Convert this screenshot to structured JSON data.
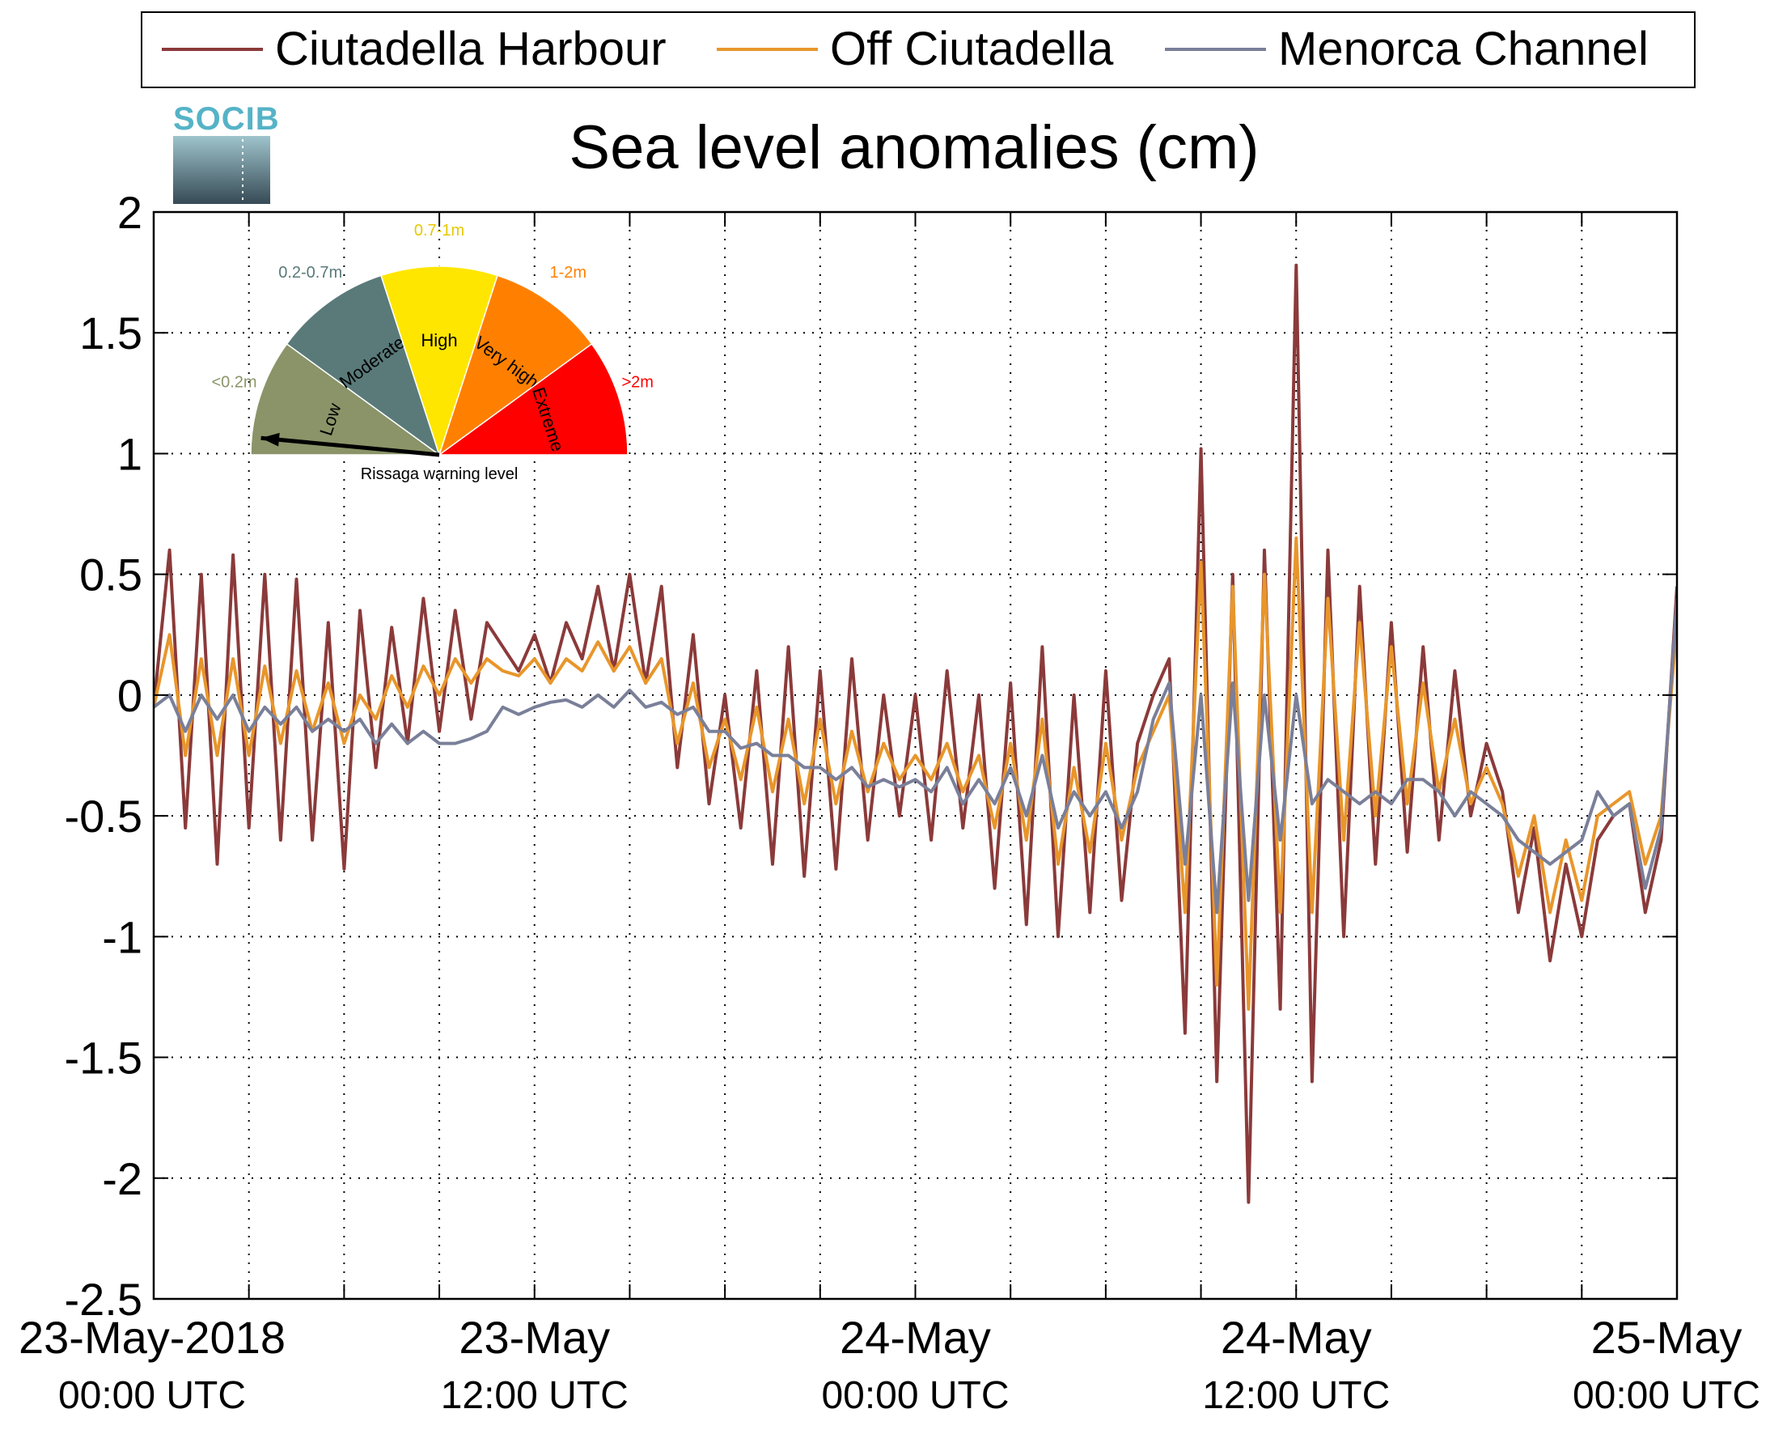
{
  "chart_data": {
    "type": "line",
    "title": "Sea level anomalies (cm)",
    "logo_text": "SOCIB",
    "xlabel": "",
    "ylabel": "",
    "ylim": [
      -2.5,
      2
    ],
    "xlim_hours": [
      0,
      48
    ],
    "grid": true,
    "legend_position": "top",
    "yticks": [
      {
        "value": 2,
        "label": "2"
      },
      {
        "value": 1.5,
        "label": "1.5"
      },
      {
        "value": 1,
        "label": "1"
      },
      {
        "value": 0.5,
        "label": "0.5"
      },
      {
        "value": 0,
        "label": "0"
      },
      {
        "value": -0.5,
        "label": "-0.5"
      },
      {
        "value": -1,
        "label": "-1"
      },
      {
        "value": -1.5,
        "label": "-1.5"
      },
      {
        "value": -2,
        "label": "-2"
      },
      {
        "value": -2.5,
        "label": "-2.5"
      }
    ],
    "xticks": [
      {
        "hour": 0,
        "date": "23-May-2018",
        "time": "00:00 UTC"
      },
      {
        "hour": 12,
        "date": "23-May",
        "time": "12:00 UTC"
      },
      {
        "hour": 24,
        "date": "24-May",
        "time": "00:00 UTC"
      },
      {
        "hour": 36,
        "date": "24-May",
        "time": "12:00 UTC"
      },
      {
        "hour": 48,
        "date": "25-May",
        "time": "00:00 UTC"
      }
    ],
    "x_minor_grid_hours": [
      3,
      6,
      9,
      12,
      15,
      18,
      21,
      24,
      27,
      30,
      33,
      36,
      39,
      42,
      45
    ],
    "series": [
      {
        "name": "Ciutadella Harbour",
        "color": "#8b3a3a",
        "x": [
          0,
          0.5,
          1,
          1.5,
          2,
          2.5,
          3,
          3.5,
          4,
          4.5,
          5,
          5.5,
          6,
          6.5,
          7,
          7.5,
          8,
          8.5,
          9,
          9.5,
          10,
          10.5,
          11,
          11.5,
          12,
          12.5,
          13,
          13.5,
          14,
          14.5,
          15,
          15.5,
          16,
          16.5,
          17,
          17.5,
          18,
          18.5,
          19,
          19.5,
          20,
          20.5,
          21,
          21.5,
          22,
          22.5,
          23,
          23.5,
          24,
          24.5,
          25,
          25.5,
          26,
          26.5,
          27,
          27.5,
          28,
          28.5,
          29,
          29.5,
          30,
          30.5,
          31,
          31.5,
          32,
          32.5,
          33,
          33.5,
          34,
          34.5,
          35,
          35.5,
          36,
          36.5,
          37,
          37.5,
          38,
          38.5,
          39,
          39.5,
          40,
          40.5,
          41,
          41.5,
          42,
          42.5,
          43,
          43.5,
          44,
          44.5,
          45,
          45.5,
          46,
          46.5,
          47,
          47.5,
          48
        ],
        "y": [
          -0.05,
          0.6,
          -0.55,
          0.5,
          -0.7,
          0.58,
          -0.55,
          0.5,
          -0.6,
          0.48,
          -0.6,
          0.3,
          -0.72,
          0.35,
          -0.3,
          0.28,
          -0.2,
          0.4,
          -0.15,
          0.35,
          -0.1,
          0.3,
          0.2,
          0.1,
          0.25,
          0.05,
          0.3,
          0.15,
          0.45,
          0.1,
          0.5,
          0.05,
          0.45,
          -0.3,
          0.25,
          -0.45,
          0.0,
          -0.55,
          0.1,
          -0.7,
          0.2,
          -0.75,
          0.1,
          -0.72,
          0.15,
          -0.6,
          0.0,
          -0.5,
          0.0,
          -0.6,
          0.1,
          -0.55,
          0.0,
          -0.8,
          0.05,
          -0.95,
          0.2,
          -1.0,
          0.0,
          -0.9,
          0.1,
          -0.85,
          -0.2,
          0.0,
          0.15,
          -1.4,
          1.02,
          -1.6,
          0.5,
          -2.1,
          0.6,
          -1.3,
          1.78,
          -1.6,
          0.6,
          -1.0,
          0.45,
          -0.7,
          0.3,
          -0.65,
          0.2,
          -0.6,
          0.1,
          -0.5,
          -0.2,
          -0.4,
          -0.9,
          -0.55,
          -1.1,
          -0.7,
          -1.0,
          -0.6,
          -0.5,
          -0.45,
          -0.9,
          -0.6,
          0.45
        ],
        "extremes_note": ""
      },
      {
        "name": "Off Ciutadella",
        "color": "#e8962b",
        "x": [
          0,
          0.5,
          1,
          1.5,
          2,
          2.5,
          3,
          3.5,
          4,
          4.5,
          5,
          5.5,
          6,
          6.5,
          7,
          7.5,
          8,
          8.5,
          9,
          9.5,
          10,
          10.5,
          11,
          11.5,
          12,
          12.5,
          13,
          13.5,
          14,
          14.5,
          15,
          15.5,
          16,
          16.5,
          17,
          17.5,
          18,
          18.5,
          19,
          19.5,
          20,
          20.5,
          21,
          21.5,
          22,
          22.5,
          23,
          23.5,
          24,
          24.5,
          25,
          25.5,
          26,
          26.5,
          27,
          27.5,
          28,
          28.5,
          29,
          29.5,
          30,
          30.5,
          31,
          31.5,
          32,
          32.5,
          33,
          33.5,
          34,
          34.5,
          35,
          35.5,
          36,
          36.5,
          37,
          37.5,
          38,
          38.5,
          39,
          39.5,
          40,
          40.5,
          41,
          41.5,
          42,
          42.5,
          43,
          43.5,
          44,
          44.5,
          45,
          45.5,
          46,
          46.5,
          47,
          47.5,
          48
        ],
        "y": [
          -0.05,
          0.25,
          -0.25,
          0.15,
          -0.25,
          0.15,
          -0.25,
          0.12,
          -0.2,
          0.1,
          -0.15,
          0.05,
          -0.2,
          0.0,
          -0.1,
          0.08,
          -0.05,
          0.12,
          0.0,
          0.15,
          0.05,
          0.15,
          0.1,
          0.08,
          0.15,
          0.05,
          0.15,
          0.1,
          0.22,
          0.1,
          0.2,
          0.05,
          0.15,
          -0.2,
          0.05,
          -0.3,
          -0.1,
          -0.35,
          -0.05,
          -0.4,
          -0.1,
          -0.45,
          -0.1,
          -0.45,
          -0.15,
          -0.4,
          -0.2,
          -0.35,
          -0.25,
          -0.35,
          -0.2,
          -0.4,
          -0.25,
          -0.55,
          -0.2,
          -0.6,
          -0.1,
          -0.7,
          -0.3,
          -0.65,
          -0.2,
          -0.6,
          -0.3,
          -0.15,
          0.0,
          -0.9,
          0.55,
          -1.2,
          0.45,
          -1.3,
          0.5,
          -0.9,
          0.65,
          -0.9,
          0.4,
          -0.6,
          0.3,
          -0.5,
          0.2,
          -0.45,
          0.05,
          -0.4,
          -0.1,
          -0.45,
          -0.3,
          -0.45,
          -0.75,
          -0.5,
          -0.9,
          -0.6,
          -0.85,
          -0.5,
          -0.45,
          -0.4,
          -0.7,
          -0.5,
          0.3
        ]
      },
      {
        "name": "Menorca Channel",
        "color": "#7a7f99",
        "x": [
          0,
          0.5,
          1,
          1.5,
          2,
          2.5,
          3,
          3.5,
          4,
          4.5,
          5,
          5.5,
          6,
          6.5,
          7,
          7.5,
          8,
          8.5,
          9,
          9.5,
          10,
          10.5,
          11,
          11.5,
          12,
          12.5,
          13,
          13.5,
          14,
          14.5,
          15,
          15.5,
          16,
          16.5,
          17,
          17.5,
          18,
          18.5,
          19,
          19.5,
          20,
          20.5,
          21,
          21.5,
          22,
          22.5,
          23,
          23.5,
          24,
          24.5,
          25,
          25.5,
          26,
          26.5,
          27,
          27.5,
          28,
          28.5,
          29,
          29.5,
          30,
          30.5,
          31,
          31.5,
          32,
          32.5,
          33,
          33.5,
          34,
          34.5,
          35,
          35.5,
          36,
          36.5,
          37,
          37.5,
          38,
          38.5,
          39,
          39.5,
          40,
          40.5,
          41,
          41.5,
          42,
          42.5,
          43,
          43.5,
          44,
          44.5,
          45,
          45.5,
          46,
          46.5,
          47,
          47.5,
          48
        ],
        "y": [
          -0.05,
          0.0,
          -0.15,
          0.0,
          -0.1,
          0.0,
          -0.15,
          -0.05,
          -0.12,
          -0.05,
          -0.15,
          -0.1,
          -0.15,
          -0.1,
          -0.2,
          -0.12,
          -0.2,
          -0.15,
          -0.2,
          -0.2,
          -0.18,
          -0.15,
          -0.05,
          -0.08,
          -0.05,
          -0.03,
          -0.02,
          -0.05,
          0.0,
          -0.05,
          0.02,
          -0.05,
          -0.03,
          -0.08,
          -0.05,
          -0.15,
          -0.15,
          -0.22,
          -0.2,
          -0.25,
          -0.25,
          -0.3,
          -0.3,
          -0.35,
          -0.3,
          -0.38,
          -0.35,
          -0.38,
          -0.35,
          -0.4,
          -0.3,
          -0.45,
          -0.35,
          -0.45,
          -0.3,
          -0.5,
          -0.25,
          -0.55,
          -0.4,
          -0.5,
          -0.4,
          -0.55,
          -0.4,
          -0.1,
          0.05,
          -0.7,
          0.0,
          -0.9,
          0.05,
          -0.85,
          0.0,
          -0.6,
          0.0,
          -0.45,
          -0.35,
          -0.4,
          -0.45,
          -0.4,
          -0.45,
          -0.35,
          -0.35,
          -0.4,
          -0.5,
          -0.4,
          -0.45,
          -0.5,
          -0.6,
          -0.65,
          -0.7,
          -0.65,
          -0.6,
          -0.4,
          -0.5,
          -0.45,
          -0.8,
          -0.55,
          0.4
        ]
      }
    ]
  },
  "gauge": {
    "caption": "Rissaga warning level",
    "segments": [
      {
        "label": "Low",
        "range": "<0.2m",
        "color": "#8a9468",
        "range_color": "#8a9468"
      },
      {
        "label": "Moderate",
        "range": "0.2-0.7m",
        "color": "#5a7a7a",
        "range_color": "#5a7a7a"
      },
      {
        "label": "High",
        "range": "0.7-1m",
        "color": "#ffe600",
        "range_color": "#e8c800"
      },
      {
        "label": "Very high",
        "range": "1-2m",
        "color": "#ff8000",
        "range_color": "#ff8000"
      },
      {
        "label": "Extreme",
        "range": ">2m",
        "color": "#ff0000",
        "range_color": "#ff0000"
      }
    ],
    "pointer_level": "Low"
  }
}
